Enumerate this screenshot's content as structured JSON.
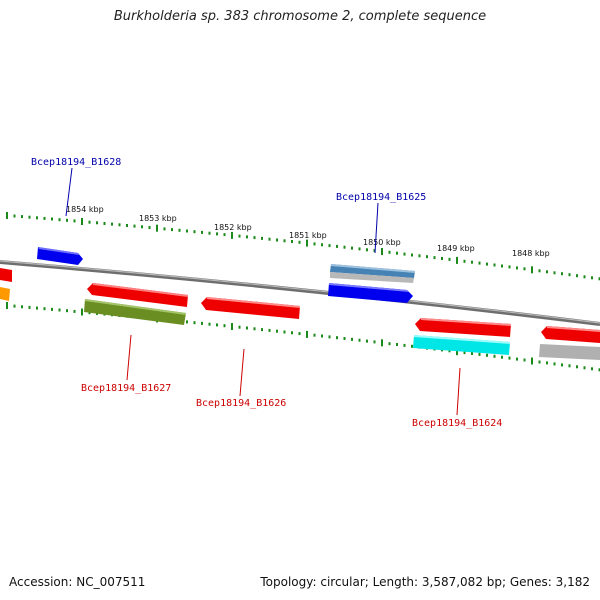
{
  "title": "Burkholderia sp. 383 chromosome 2, complete sequence",
  "footer": {
    "accession": "Accession: NC_007511",
    "summary": "Topology: circular; Length: 3,587,082 bp; Genes: 3,182"
  },
  "ruler": [
    "1854 kbp",
    "1853 kbp",
    "1852 kbp",
    "1851 kbp",
    "1850 kbp",
    "1849 kbp",
    "1848 kbp"
  ],
  "gene_labels": [
    {
      "name": "Bcep18194_B1628",
      "color": "#0000aa"
    },
    {
      "name": "Bcep18194_B1625",
      "color": "#0000aa"
    },
    {
      "name": "Bcep18194_B1627",
      "color": "#cc0000"
    },
    {
      "name": "Bcep18194_B1626",
      "color": "#cc0000"
    },
    {
      "name": "Bcep18194_B1624",
      "color": "#cc0000"
    }
  ],
  "colors": {
    "backbone": "#808080",
    "tick": "#1a8a1a",
    "blue_gene": "#0000ee",
    "red_gene": "#ee0000",
    "olive_gene": "#6b8e23",
    "cyan_gene": "#00e5e5",
    "steelblue_gene": "#4682b4",
    "gray_gene": "#b0b0b0",
    "orange_gene": "#ff9900"
  }
}
